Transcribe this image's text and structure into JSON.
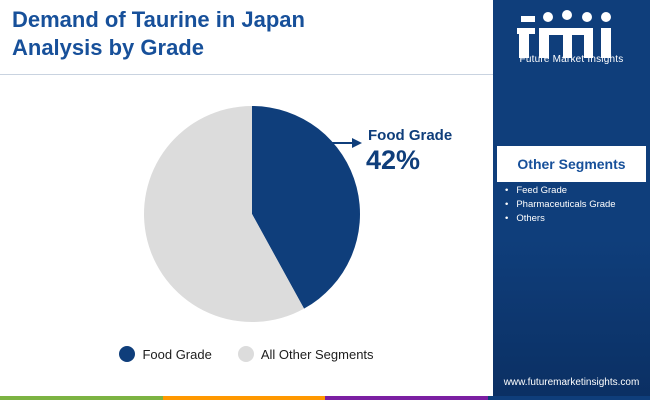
{
  "title": "Demand of Taurine in Japan\nAnalysis by Grade",
  "chart_data": {
    "type": "pie",
    "categories": [
      "Food Grade",
      "All Other Segments"
    ],
    "values": [
      42,
      58
    ],
    "colors": [
      "#0f3e7b",
      "#dcdcdc"
    ],
    "highlight": {
      "label": "Food Grade",
      "value_text": "42%"
    },
    "legend": [
      "Food Grade",
      "All Other Segments"
    ],
    "legend_placement": "bottom"
  },
  "sidebar": {
    "logo_text": "Future Market Insights",
    "other_segments_title": "Other Segments",
    "other_segments": [
      "Feed Grade",
      "Pharmaceuticals Grade",
      "Others"
    ],
    "website": "www.futuremarketinsights.com"
  },
  "footer": {
    "bar_colors": [
      "#7cb342",
      "#ff9800",
      "#7b1fa2",
      "#0f3e7b"
    ]
  }
}
